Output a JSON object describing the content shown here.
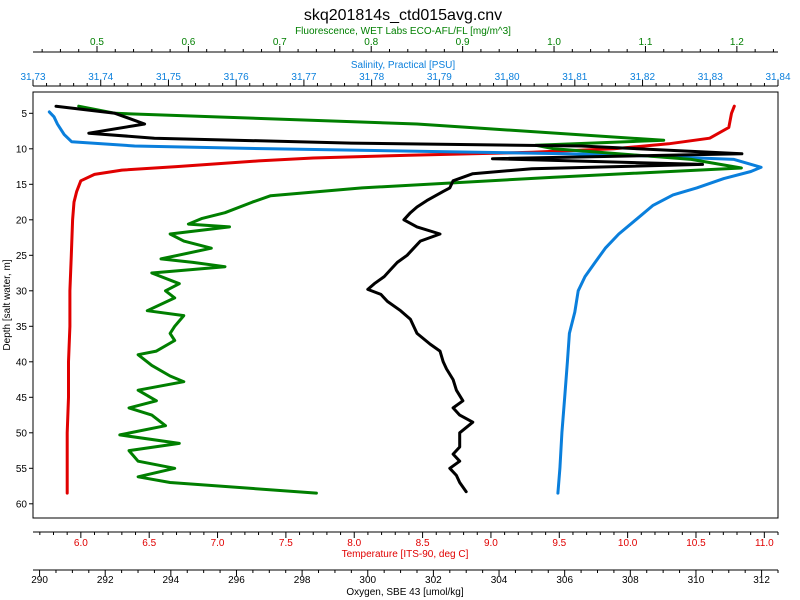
{
  "chart_data": {
    "type": "line",
    "title": "skq201814s_ctd015avg.cnv",
    "y_axis": {
      "label": "Depth [salt water, m]",
      "range": [
        2,
        62
      ],
      "ticks": [
        5,
        10,
        15,
        20,
        25,
        30,
        35,
        40,
        45,
        50,
        55,
        60
      ],
      "inverted": true
    },
    "axes": {
      "fluorescence": {
        "label": "Fluorescence, WET Labs ECO-AFL/FL [mg/m^3]",
        "position": "top",
        "color": "#007f00",
        "range": [
          0.43,
          1.245
        ],
        "ticks": [
          "0.5",
          "0.6",
          "0.7",
          "0.8",
          "0.9",
          "1.0",
          "1.1",
          "1.2"
        ]
      },
      "salinity": {
        "label": "Salinity, Practical [PSU]",
        "position": "top",
        "color": "#0a7fdc",
        "range": [
          31.73,
          31.84
        ],
        "ticks": [
          "31.73",
          "31.74",
          "31.75",
          "31.76",
          "31.77",
          "31.78",
          "31.79",
          "31.80",
          "31.81",
          "31.82",
          "31.83",
          "31.84"
        ]
      },
      "temperature": {
        "label": "Temperature [ITS-90, deg C]",
        "position": "bottom",
        "color": "#e00000",
        "range": [
          5.65,
          11.1
        ],
        "ticks": [
          "6.0",
          "6.5",
          "7.0",
          "7.5",
          "8.0",
          "8.5",
          "9.0",
          "9.5",
          "10.0",
          "10.5",
          "11.0"
        ]
      },
      "oxygen": {
        "label": "Oxygen, SBE 43 [umol/kg]",
        "position": "bottom",
        "color": "#000000",
        "range": [
          289.8,
          312.5
        ],
        "ticks": [
          "290",
          "292",
          "294",
          "296",
          "298",
          "300",
          "302",
          "304",
          "306",
          "308",
          "310",
          "312"
        ]
      }
    },
    "series": [
      {
        "axis": "temperature",
        "color": "#e00000",
        "points": [
          [
            10.78,
            4
          ],
          [
            10.76,
            5
          ],
          [
            10.74,
            7
          ],
          [
            10.6,
            8.5
          ],
          [
            10.3,
            9.3
          ],
          [
            9.9,
            10
          ],
          [
            9.3,
            10.5
          ],
          [
            8.4,
            10.9
          ],
          [
            7.7,
            11.3
          ],
          [
            7.3,
            11.7
          ],
          [
            7.0,
            12.1
          ],
          [
            6.7,
            12.5
          ],
          [
            6.3,
            13
          ],
          [
            6.1,
            13.6
          ],
          [
            6.0,
            14.5
          ],
          [
            5.97,
            16
          ],
          [
            5.95,
            17.5
          ],
          [
            5.94,
            20
          ],
          [
            5.93,
            25
          ],
          [
            5.92,
            30
          ],
          [
            5.92,
            35
          ],
          [
            5.91,
            40
          ],
          [
            5.91,
            45
          ],
          [
            5.9,
            50
          ],
          [
            5.9,
            55
          ],
          [
            5.9,
            58.5
          ]
        ]
      },
      {
        "axis": "salinity",
        "color": "#0a7fdc",
        "points": [
          [
            31.7324,
            4.8
          ],
          [
            31.7331,
            5.5
          ],
          [
            31.7336,
            6.5
          ],
          [
            31.7346,
            8
          ],
          [
            31.7357,
            9
          ],
          [
            31.745,
            9.6
          ],
          [
            31.765,
            10
          ],
          [
            31.79,
            10.4
          ],
          [
            31.815,
            10.8
          ],
          [
            31.8335,
            11.5
          ],
          [
            31.8375,
            12.6
          ],
          [
            31.836,
            13.2
          ],
          [
            31.832,
            14.2
          ],
          [
            31.828,
            15.5
          ],
          [
            31.8245,
            16.5
          ],
          [
            31.8215,
            18
          ],
          [
            31.819,
            20
          ],
          [
            31.8165,
            22
          ],
          [
            31.8145,
            24
          ],
          [
            31.813,
            26
          ],
          [
            31.8115,
            28
          ],
          [
            31.8105,
            30
          ],
          [
            31.81,
            33
          ],
          [
            31.8092,
            36
          ],
          [
            31.8089,
            40
          ],
          [
            31.8085,
            45
          ],
          [
            31.8081,
            50
          ],
          [
            31.8078,
            55
          ],
          [
            31.8075,
            58.5
          ]
        ]
      },
      {
        "axis": "fluorescence",
        "color": "#007f00",
        "points": [
          [
            0.48,
            4
          ],
          [
            0.52,
            5
          ],
          [
            0.85,
            6.5
          ],
          [
            1.12,
            8.8
          ],
          [
            0.98,
            9.5
          ],
          [
            1.0,
            10
          ],
          [
            1.15,
            11.5
          ],
          [
            1.205,
            12.7
          ],
          [
            1.0,
            14
          ],
          [
            0.79,
            15.5
          ],
          [
            0.69,
            16.6
          ],
          [
            0.67,
            17.5
          ],
          [
            0.64,
            19
          ],
          [
            0.615,
            19.8
          ],
          [
            0.6,
            20.6
          ],
          [
            0.645,
            21
          ],
          [
            0.58,
            22
          ],
          [
            0.595,
            23
          ],
          [
            0.625,
            24
          ],
          [
            0.57,
            25.5
          ],
          [
            0.605,
            26
          ],
          [
            0.64,
            26.6
          ],
          [
            0.56,
            27.5
          ],
          [
            0.59,
            29
          ],
          [
            0.575,
            30
          ],
          [
            0.585,
            31
          ],
          [
            0.555,
            32.8
          ],
          [
            0.595,
            33.5
          ],
          [
            0.585,
            35
          ],
          [
            0.58,
            36
          ],
          [
            0.585,
            37
          ],
          [
            0.565,
            38.5
          ],
          [
            0.545,
            39
          ],
          [
            0.56,
            40.5
          ],
          [
            0.58,
            42
          ],
          [
            0.595,
            42.8
          ],
          [
            0.545,
            44
          ],
          [
            0.565,
            45.5
          ],
          [
            0.535,
            46.5
          ],
          [
            0.56,
            47.5
          ],
          [
            0.575,
            49
          ],
          [
            0.525,
            50.3
          ],
          [
            0.59,
            51.5
          ],
          [
            0.535,
            52.5
          ],
          [
            0.545,
            54
          ],
          [
            0.585,
            55
          ],
          [
            0.545,
            56.2
          ],
          [
            0.58,
            57
          ],
          [
            0.74,
            58.5
          ]
        ]
      },
      {
        "axis": "oxygen",
        "color": "#000000",
        "points": [
          [
            290.5,
            4
          ],
          [
            292.3,
            5
          ],
          [
            293.2,
            6.5
          ],
          [
            291.5,
            7.8
          ],
          [
            293.5,
            8.5
          ],
          [
            299.5,
            9.2
          ],
          [
            306.5,
            9.6
          ],
          [
            311.4,
            10.7
          ],
          [
            303.8,
            11.4
          ],
          [
            310.2,
            12.2
          ],
          [
            305,
            12.8
          ],
          [
            303.2,
            13.5
          ],
          [
            302.6,
            14.5
          ],
          [
            302.5,
            15.5
          ],
          [
            302.3,
            16
          ],
          [
            301.8,
            17.3
          ],
          [
            301.5,
            18.2
          ],
          [
            301.3,
            19
          ],
          [
            301.1,
            20
          ],
          [
            301.5,
            21
          ],
          [
            302.2,
            22
          ],
          [
            301.6,
            23
          ],
          [
            301.4,
            24
          ],
          [
            301.2,
            25
          ],
          [
            300.9,
            26
          ],
          [
            300.7,
            27
          ],
          [
            300.5,
            28
          ],
          [
            300.2,
            29
          ],
          [
            300.0,
            29.8
          ],
          [
            300.4,
            30.5
          ],
          [
            300.6,
            31.5
          ],
          [
            301.0,
            32.8
          ],
          [
            301.3,
            34
          ],
          [
            301.5,
            36
          ],
          [
            301.9,
            37.5
          ],
          [
            302.2,
            38.5
          ],
          [
            302.3,
            40
          ],
          [
            302.4,
            41
          ],
          [
            302.6,
            42.5
          ],
          [
            302.7,
            44
          ],
          [
            302.9,
            45.5
          ],
          [
            302.6,
            46.5
          ],
          [
            302.8,
            47.5
          ],
          [
            303.2,
            48.5
          ],
          [
            302.8,
            50
          ],
          [
            302.8,
            52
          ],
          [
            302.6,
            53
          ],
          [
            302.8,
            54
          ],
          [
            302.5,
            55
          ],
          [
            302.7,
            56
          ],
          [
            302.8,
            57
          ],
          [
            303.0,
            58.3
          ]
        ]
      }
    ]
  }
}
